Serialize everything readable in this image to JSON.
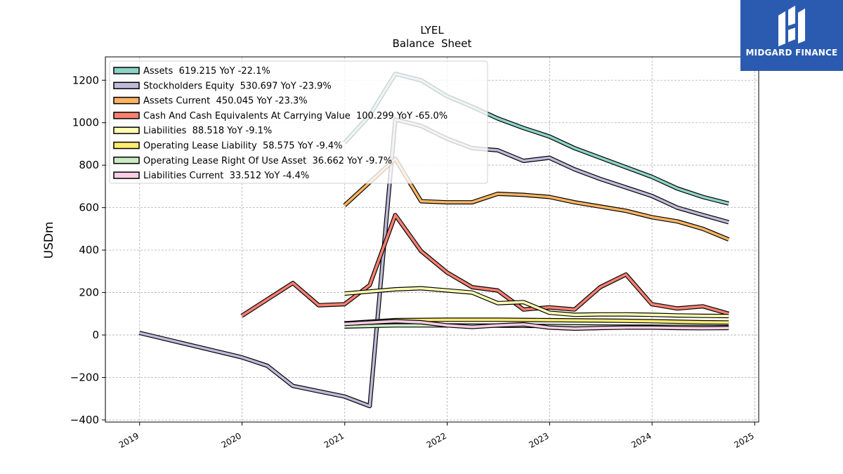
{
  "brand": {
    "name": "MIDGARD FINANCE",
    "logo_icon": "midgard-finance-logo-icon",
    "bg_color": "#2a5bb0"
  },
  "chart_data": {
    "type": "line",
    "title": "LYEL",
    "subtitle": "Balance  Sheet",
    "xlabel": "",
    "ylabel": "USDm",
    "xlim": [
      "2018-09-01",
      "2025-01-15"
    ],
    "ylim": [
      -410,
      1310
    ],
    "x_ticks": [
      "2019",
      "2020",
      "2021",
      "2022",
      "2023",
      "2024",
      "2025"
    ],
    "y_ticks": [
      -400,
      -200,
      0,
      200,
      400,
      600,
      800,
      1000,
      1200
    ],
    "grid": true,
    "legend_position": "top-left",
    "series": [
      {
        "name": "Assets",
        "legend": "Assets  619.215 YoY -22.1%",
        "color": "#8dd3c7",
        "points": [
          [
            "2020-12-31",
            905
          ],
          [
            "2021-03-31",
            1035
          ],
          [
            "2021-06-30",
            1230
          ],
          [
            "2021-09-30",
            1200
          ],
          [
            "2021-12-31",
            1125
          ],
          [
            "2022-03-31",
            1075
          ],
          [
            "2022-06-30",
            1020
          ],
          [
            "2022-09-30",
            975
          ],
          [
            "2022-12-31",
            935
          ],
          [
            "2023-03-31",
            880
          ],
          [
            "2023-06-30",
            835
          ],
          [
            "2023-09-30",
            790
          ],
          [
            "2023-12-31",
            745
          ],
          [
            "2024-03-31",
            690
          ],
          [
            "2024-06-30",
            650
          ],
          [
            "2024-09-30",
            619
          ]
        ]
      },
      {
        "name": "Stockholders Equity",
        "legend": "Stockholders Equity  530.697 YoY -23.9%",
        "color": "#bebada",
        "points": [
          [
            "2018-12-31",
            10
          ],
          [
            "2019-12-31",
            -105
          ],
          [
            "2020-03-31",
            -145
          ],
          [
            "2020-06-30",
            -240
          ],
          [
            "2020-12-31",
            -290
          ],
          [
            "2021-03-31",
            -335
          ],
          [
            "2021-06-30",
            1015
          ],
          [
            "2021-09-30",
            985
          ],
          [
            "2021-12-31",
            925
          ],
          [
            "2022-03-31",
            880
          ],
          [
            "2022-06-30",
            870
          ],
          [
            "2022-09-30",
            820
          ],
          [
            "2022-12-31",
            835
          ],
          [
            "2023-03-31",
            780
          ],
          [
            "2023-06-30",
            735
          ],
          [
            "2023-09-30",
            695
          ],
          [
            "2023-12-31",
            655
          ],
          [
            "2024-03-31",
            600
          ],
          [
            "2024-06-30",
            565
          ],
          [
            "2024-09-30",
            531
          ]
        ]
      },
      {
        "name": "Assets Current",
        "legend": "Assets Current  450.045 YoY -23.3%",
        "color": "#fdb462",
        "points": [
          [
            "2020-12-31",
            610
          ],
          [
            "2021-06-30",
            830
          ],
          [
            "2021-09-30",
            630
          ],
          [
            "2021-12-31",
            625
          ],
          [
            "2022-03-31",
            625
          ],
          [
            "2022-06-30",
            665
          ],
          [
            "2022-09-30",
            660
          ],
          [
            "2022-12-31",
            650
          ],
          [
            "2023-03-31",
            625
          ],
          [
            "2023-06-30",
            605
          ],
          [
            "2023-09-30",
            585
          ],
          [
            "2023-12-31",
            555
          ],
          [
            "2024-03-31",
            535
          ],
          [
            "2024-06-30",
            500
          ],
          [
            "2024-09-30",
            450
          ]
        ]
      },
      {
        "name": "Cash And Cash Equivalents At Carrying Value",
        "legend": "Cash And Cash Equivalents At Carrying Value  100.299 YoY -65.0%",
        "color": "#fb8072",
        "points": [
          [
            "2019-12-31",
            90
          ],
          [
            "2020-06-30",
            245
          ],
          [
            "2020-09-30",
            140
          ],
          [
            "2020-12-31",
            145
          ],
          [
            "2021-03-31",
            235
          ],
          [
            "2021-06-30",
            565
          ],
          [
            "2021-09-30",
            395
          ],
          [
            "2021-12-31",
            295
          ],
          [
            "2022-03-31",
            225
          ],
          [
            "2022-06-30",
            210
          ],
          [
            "2022-09-30",
            120
          ],
          [
            "2022-12-31",
            130
          ],
          [
            "2023-03-31",
            120
          ],
          [
            "2023-06-30",
            225
          ],
          [
            "2023-09-30",
            285
          ],
          [
            "2023-12-31",
            145
          ],
          [
            "2024-03-31",
            125
          ],
          [
            "2024-06-30",
            135
          ],
          [
            "2024-09-30",
            100
          ]
        ]
      },
      {
        "name": "Liabilities",
        "legend": "Liabilities  88.518 YoY -9.1%",
        "color": "#ffffb3",
        "points": [
          [
            "2020-12-31",
            195
          ],
          [
            "2021-06-30",
            215
          ],
          [
            "2021-09-30",
            220
          ],
          [
            "2021-12-31",
            210
          ],
          [
            "2022-03-31",
            200
          ],
          [
            "2022-06-30",
            150
          ],
          [
            "2022-09-30",
            155
          ],
          [
            "2022-12-31",
            105
          ],
          [
            "2023-03-31",
            95
          ],
          [
            "2023-06-30",
            97
          ],
          [
            "2023-09-30",
            97
          ],
          [
            "2023-12-31",
            95
          ],
          [
            "2024-03-31",
            92
          ],
          [
            "2024-06-30",
            90
          ],
          [
            "2024-09-30",
            89
          ]
        ]
      },
      {
        "name": "Operating Lease Liability",
        "legend": "Operating Lease Liability  58.575 YoY -9.4%",
        "color": "#ffed6f",
        "points": [
          [
            "2020-12-31",
            55
          ],
          [
            "2021-06-30",
            70
          ],
          [
            "2021-12-31",
            72
          ],
          [
            "2022-06-30",
            72
          ],
          [
            "2022-12-31",
            70
          ],
          [
            "2023-06-30",
            68
          ],
          [
            "2023-12-31",
            65
          ],
          [
            "2024-06-30",
            60
          ],
          [
            "2024-09-30",
            59
          ]
        ]
      },
      {
        "name": "Operating Lease Right Of Use Asset",
        "legend": "Operating Lease Right Of Use Asset  36.662 YoY -9.7%",
        "color": "#ccebc5",
        "points": [
          [
            "2020-12-31",
            40
          ],
          [
            "2021-06-30",
            45
          ],
          [
            "2021-12-31",
            45
          ],
          [
            "2022-06-30",
            44
          ],
          [
            "2022-12-31",
            42
          ],
          [
            "2023-06-30",
            40
          ],
          [
            "2023-12-31",
            39
          ],
          [
            "2024-06-30",
            38
          ],
          [
            "2024-09-30",
            37
          ]
        ]
      },
      {
        "name": "Liabilities Current",
        "legend": "Liabilities Current  33.512 YoY -4.4%",
        "color": "#fccde5",
        "points": [
          [
            "2020-12-31",
            52
          ],
          [
            "2021-06-30",
            65
          ],
          [
            "2021-09-30",
            60
          ],
          [
            "2021-12-31",
            45
          ],
          [
            "2022-03-31",
            38
          ],
          [
            "2022-06-30",
            45
          ],
          [
            "2022-09-30",
            50
          ],
          [
            "2022-12-31",
            35
          ],
          [
            "2023-03-31",
            30
          ],
          [
            "2023-06-30",
            33
          ],
          [
            "2023-09-30",
            35
          ],
          [
            "2023-12-31",
            35
          ],
          [
            "2024-03-31",
            33
          ],
          [
            "2024-06-30",
            32
          ],
          [
            "2024-09-30",
            33
          ]
        ]
      }
    ]
  }
}
